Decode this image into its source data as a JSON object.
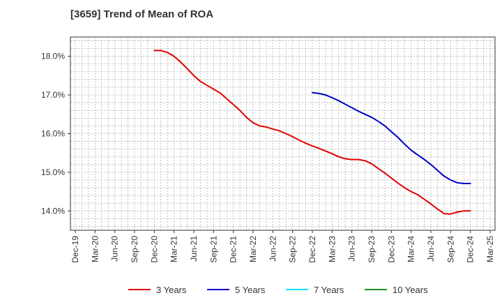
{
  "chart_data": {
    "type": "line",
    "title": "[3659]  Trend of Mean of ROA",
    "xlabel": "",
    "ylabel": "",
    "x_ticks": [
      "Dec-19",
      "Mar-20",
      "Jun-20",
      "Sep-20",
      "Dec-20",
      "Mar-21",
      "Jun-21",
      "Sep-21",
      "Dec-21",
      "Mar-22",
      "Jun-22",
      "Sep-22",
      "Dec-22",
      "Mar-23",
      "Jun-23",
      "Sep-23",
      "Dec-23",
      "Mar-24",
      "Jun-24",
      "Sep-24",
      "Dec-24",
      "Mar-25"
    ],
    "y_ticks": [
      {
        "value": 14.0,
        "label": "14.0%"
      },
      {
        "value": 15.0,
        "label": "15.0%"
      },
      {
        "value": 16.0,
        "label": "16.0%"
      },
      {
        "value": 17.0,
        "label": "17.0%"
      },
      {
        "value": 18.0,
        "label": "18.0%"
      }
    ],
    "ylim": [
      13.5,
      18.5
    ],
    "grid": true,
    "legend_position": "bottom",
    "series": [
      {
        "name": "3 Years",
        "color": "#e00000",
        "x": [
          "Dec-20",
          "Jan-21",
          "Feb-21",
          "Mar-21",
          "Apr-21",
          "May-21",
          "Jun-21",
          "Jul-21",
          "Aug-21",
          "Sep-21",
          "Oct-21",
          "Nov-21",
          "Dec-21",
          "Jan-22",
          "Feb-22",
          "Mar-22",
          "Apr-22",
          "May-22",
          "Jun-22",
          "Jul-22",
          "Aug-22",
          "Sep-22",
          "Oct-22",
          "Nov-22",
          "Dec-22",
          "Jan-23",
          "Feb-23",
          "Mar-23",
          "Apr-23",
          "May-23",
          "Jun-23",
          "Jul-23",
          "Aug-23",
          "Sep-23",
          "Oct-23",
          "Nov-23",
          "Dec-23",
          "Jan-24",
          "Feb-24",
          "Mar-24",
          "Apr-24",
          "May-24",
          "Jun-24",
          "Jul-24",
          "Aug-24",
          "Sep-24",
          "Oct-24",
          "Nov-24",
          "Dec-24"
        ],
        "values": [
          18.15,
          18.15,
          18.1,
          18.0,
          17.85,
          17.68,
          17.5,
          17.35,
          17.25,
          17.15,
          17.05,
          16.9,
          16.75,
          16.6,
          16.42,
          16.28,
          16.2,
          16.17,
          16.12,
          16.07,
          16.0,
          15.92,
          15.83,
          15.75,
          15.68,
          15.62,
          15.55,
          15.48,
          15.4,
          15.35,
          15.33,
          15.33,
          15.3,
          15.22,
          15.1,
          14.98,
          14.85,
          14.72,
          14.6,
          14.5,
          14.42,
          14.3,
          14.18,
          14.05,
          13.93,
          13.92,
          13.97,
          14.0,
          14.0
        ]
      },
      {
        "name": "5 Years",
        "color": "#0000c8",
        "x": [
          "Dec-22",
          "Jan-23",
          "Feb-23",
          "Mar-23",
          "Apr-23",
          "May-23",
          "Jun-23",
          "Jul-23",
          "Aug-23",
          "Sep-23",
          "Oct-23",
          "Nov-23",
          "Dec-23",
          "Jan-24",
          "Feb-24",
          "Mar-24",
          "Apr-24",
          "May-24",
          "Jun-24",
          "Jul-24",
          "Aug-24",
          "Sep-24",
          "Oct-24",
          "Nov-24",
          "Dec-24"
        ],
        "values": [
          17.06,
          17.04,
          17.0,
          16.93,
          16.85,
          16.76,
          16.67,
          16.58,
          16.5,
          16.42,
          16.32,
          16.2,
          16.05,
          15.9,
          15.73,
          15.57,
          15.45,
          15.33,
          15.2,
          15.05,
          14.9,
          14.8,
          14.73,
          14.71,
          14.71
        ]
      },
      {
        "name": "7 Years",
        "color": "#00e5ff",
        "x": [],
        "values": []
      },
      {
        "name": "10 Years",
        "color": "#228b22",
        "x": [],
        "values": []
      }
    ]
  }
}
